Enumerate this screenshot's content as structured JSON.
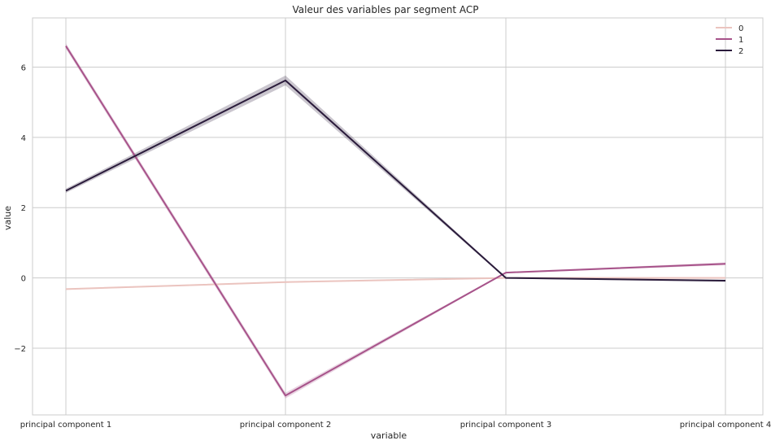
{
  "chart_data": {
    "type": "line",
    "title": "Valeur des variables par segment ACP",
    "xlabel": "variable",
    "ylabel": "value",
    "categories": [
      "principal component 1",
      "principal component 2",
      "principal component 3",
      "principal component 4"
    ],
    "ylim": [
      -3.9,
      7.4
    ],
    "yticks": [
      -2,
      0,
      2,
      4,
      6
    ],
    "ytick_labels": [
      "−2",
      "0",
      "2",
      "4",
      "6"
    ],
    "grid": true,
    "legend_position": "top-right",
    "series": [
      {
        "name": "0",
        "color": "#ebc4bf",
        "values": [
          -0.32,
          -0.12,
          0.0,
          0.0
        ]
      },
      {
        "name": "1",
        "color": "#a7538a",
        "values": [
          6.6,
          -3.35,
          0.15,
          0.4
        ]
      },
      {
        "name": "2",
        "color": "#2a1b3b",
        "values": [
          2.48,
          5.62,
          0.0,
          -0.08
        ]
      }
    ],
    "confidence_band_halfwidth": [
      [
        0.02,
        0.02,
        0.01,
        0.02
      ],
      [
        0.08,
        0.08,
        0.02,
        0.04
      ],
      [
        0.06,
        0.14,
        0.02,
        0.03
      ]
    ]
  }
}
